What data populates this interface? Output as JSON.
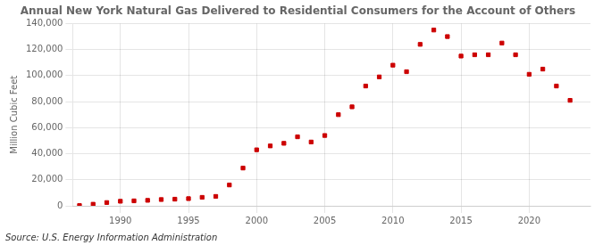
{
  "chart_data": {
    "type": "scatter",
    "title": "Annual New York Natural Gas Delivered to Residential Consumers for the Account of Others",
    "ylabel": "Million Cubic Feet",
    "annotation": "Source: U.S. Energy Information Administration",
    "x": [
      1987,
      1988,
      1989,
      1990,
      1991,
      1992,
      1993,
      1994,
      1995,
      1996,
      1997,
      1998,
      1999,
      2000,
      2001,
      2002,
      2003,
      2004,
      2005,
      2006,
      2007,
      2008,
      2009,
      2010,
      2011,
      2012,
      2013,
      2014,
      2015,
      2016,
      2017,
      2018,
      2019,
      2020,
      2021,
      2022,
      2023
    ],
    "values": [
      200,
      1200,
      2500,
      3500,
      3800,
      4200,
      4800,
      5100,
      5500,
      6500,
      7200,
      16000,
      29000,
      43000,
      46000,
      48000,
      53000,
      49000,
      54000,
      70000,
      76000,
      92000,
      99000,
      108000,
      103000,
      124000,
      135000,
      130000,
      115000,
      116000,
      116000,
      125000,
      116000,
      101000,
      105000,
      92000,
      81000
    ],
    "color": "#cc0000",
    "marker": "square",
    "xlim": [
      1986.5,
      2024.5
    ],
    "xticks": [
      1990,
      1995,
      2000,
      2005,
      2010,
      2015,
      2020
    ],
    "ylim": [
      0,
      140000
    ],
    "yticks": [
      0,
      {
        "value": 20000,
        "label": "20,000"
      },
      {
        "value": 40000,
        "label": "40,000"
      },
      {
        "value": 60000,
        "label": "60,000"
      },
      {
        "value": 80000,
        "label": "80,000"
      },
      {
        "value": 100000,
        "label": "100,000"
      },
      {
        "value": 120000,
        "label": "120,000"
      },
      {
        "value": 140000,
        "label": "140,000"
      }
    ],
    "grid": true
  }
}
